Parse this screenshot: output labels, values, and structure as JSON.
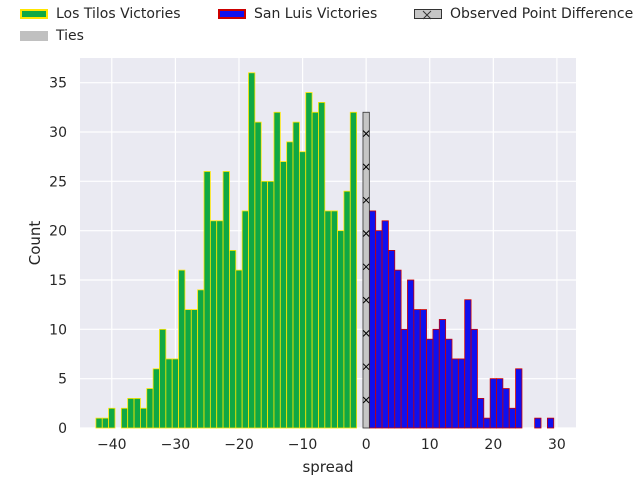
{
  "chart_data": {
    "type": "bar",
    "xlabel": "spread",
    "ylabel": "Count",
    "xlim": [
      -45,
      33
    ],
    "ylim": [
      0,
      37.5
    ],
    "x_ticks": [
      -40,
      -30,
      -20,
      -10,
      0,
      10,
      20,
      30
    ],
    "y_ticks": [
      0,
      5,
      10,
      15,
      20,
      25,
      30,
      35
    ],
    "grid": true,
    "legend_placement": "top",
    "background_color": "#EAEAF2",
    "series": [
      {
        "name": "Los Tilos Victories",
        "fill": "#10A844",
        "edge": "#FFE600",
        "x": [
          -42,
          -41,
          -40,
          -38,
          -37,
          -36,
          -35,
          -34,
          -33,
          -32,
          -31,
          -30,
          -29,
          -28,
          -27,
          -26,
          -25,
          -24,
          -23,
          -22,
          -21,
          -20,
          -19,
          -18,
          -17,
          -16,
          -15,
          -14,
          -13,
          -12,
          -11,
          -10,
          -9,
          -8,
          -7,
          -6,
          -5,
          -4,
          -3,
          -2,
          -1
        ],
        "values": [
          1,
          1,
          2,
          2,
          3,
          3,
          2,
          4,
          6,
          10,
          7,
          7,
          16,
          12,
          12,
          14,
          26,
          21,
          21,
          26,
          18,
          16,
          22,
          36,
          31,
          25,
          25,
          32,
          27,
          29,
          31,
          28,
          34,
          32,
          33,
          22,
          22,
          20,
          24,
          32,
          null
        ]
      },
      {
        "name": "San Luis Victories",
        "fill": "#1010EE",
        "edge": "#CC0000",
        "x": [
          1,
          2,
          3,
          4,
          5,
          6,
          7,
          8,
          9,
          10,
          11,
          12,
          13,
          14,
          15,
          16,
          17,
          18,
          19,
          20,
          21,
          22,
          23,
          24,
          27,
          29
        ],
        "values": [
          22,
          20,
          21,
          18,
          16,
          10,
          15,
          12,
          12,
          9,
          10,
          11,
          9,
          7,
          7,
          13,
          10,
          3,
          1,
          5,
          5,
          4,
          2,
          6,
          1,
          1
        ]
      }
    ],
    "ties": {
      "name": "Ties",
      "x": 0,
      "value": 32,
      "fill": "#C6C6C6",
      "edge": "#333333",
      "hatch": "x"
    },
    "observed": {
      "name": "Observed Point Difference",
      "fill": "#C6C6C6",
      "edge": "#333333"
    }
  }
}
